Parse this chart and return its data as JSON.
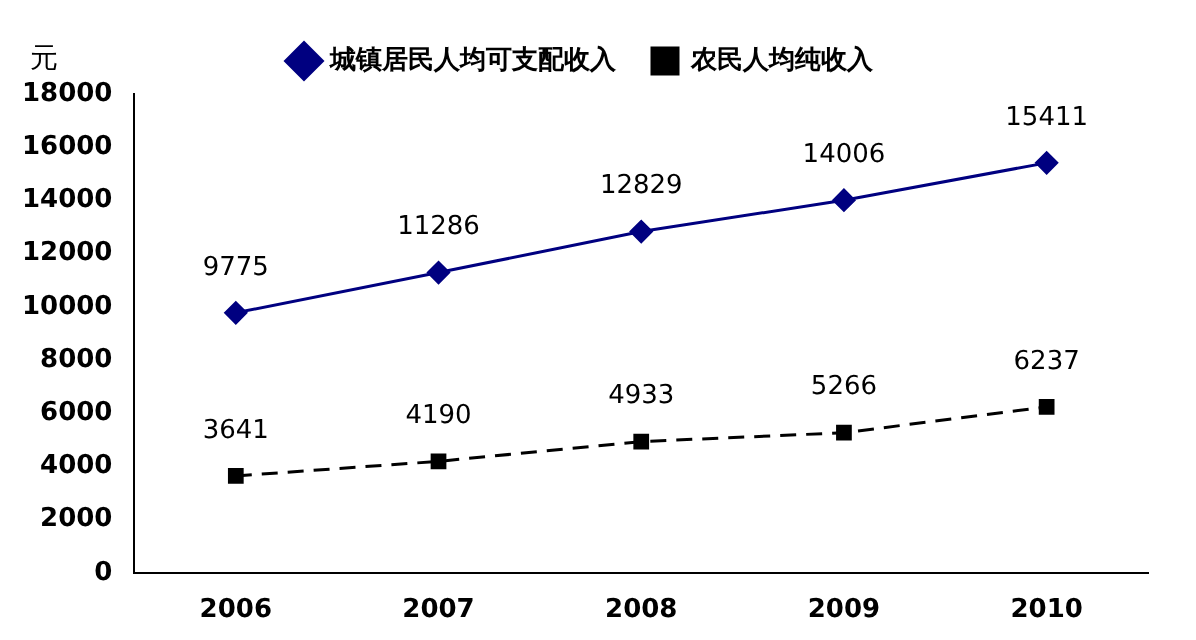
{
  "chart_data": {
    "type": "line",
    "ylabel": "元",
    "categories": [
      "2006",
      "2007",
      "2008",
      "2009",
      "2010"
    ],
    "series": [
      {
        "name": "城镇居民人均可支配收入",
        "color": "#000080",
        "marker": "diamond",
        "line_style": "solid",
        "values": [
          9775,
          11286,
          12829,
          14006,
          15411
        ]
      },
      {
        "name": "农民人均纯收入",
        "color": "#000000",
        "marker": "square",
        "line_style": "dashed",
        "values": [
          3641,
          4190,
          4933,
          5266,
          6237
        ]
      }
    ],
    "ylim": [
      0,
      18000
    ],
    "yticks": [
      0,
      2000,
      4000,
      6000,
      8000,
      10000,
      12000,
      14000,
      16000,
      18000
    ],
    "grid": false,
    "legend": "top",
    "data_labels": true
  }
}
